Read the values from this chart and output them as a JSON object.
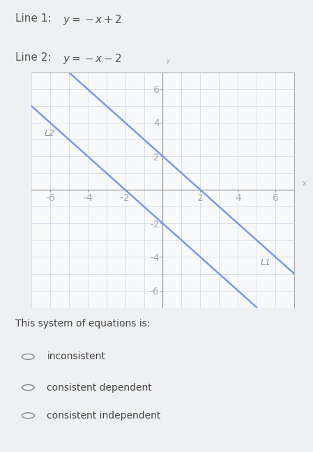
{
  "line1_label_plain": "Line 1: ",
  "line1_eq": "y = ⁻x + 2",
  "line2_label_plain": "Line 2: ",
  "line2_eq": "y = ⁻x − 2",
  "line1_slope": -1,
  "line1_intercept": 2,
  "line2_slope": -1,
  "line2_intercept": -2,
  "line_color": "#7799ee",
  "line_width": 1.8,
  "xlim": [
    -7,
    7
  ],
  "ylim": [
    -7,
    7
  ],
  "xticks": [
    -6,
    -4,
    -2,
    2,
    4,
    6
  ],
  "yticks": [
    -6,
    -4,
    -2,
    2,
    4,
    6
  ],
  "grid_color": "#c8d8e8",
  "axis_color": "#999999",
  "tick_color": "#aaaaaa",
  "bg_color": "#eef0f2",
  "plot_bg_color": "#f8f9fa",
  "L1_label": "L1",
  "L2_label": "L2",
  "question_text": "This system of equations is:",
  "options": [
    "inconsistent",
    "consistent dependent",
    "consistent independent"
  ],
  "header_fontsize": 11,
  "label_fontsize": 9,
  "tick_fontsize": 7,
  "question_fontsize": 10,
  "option_fontsize": 10,
  "circle_color": "#888899"
}
